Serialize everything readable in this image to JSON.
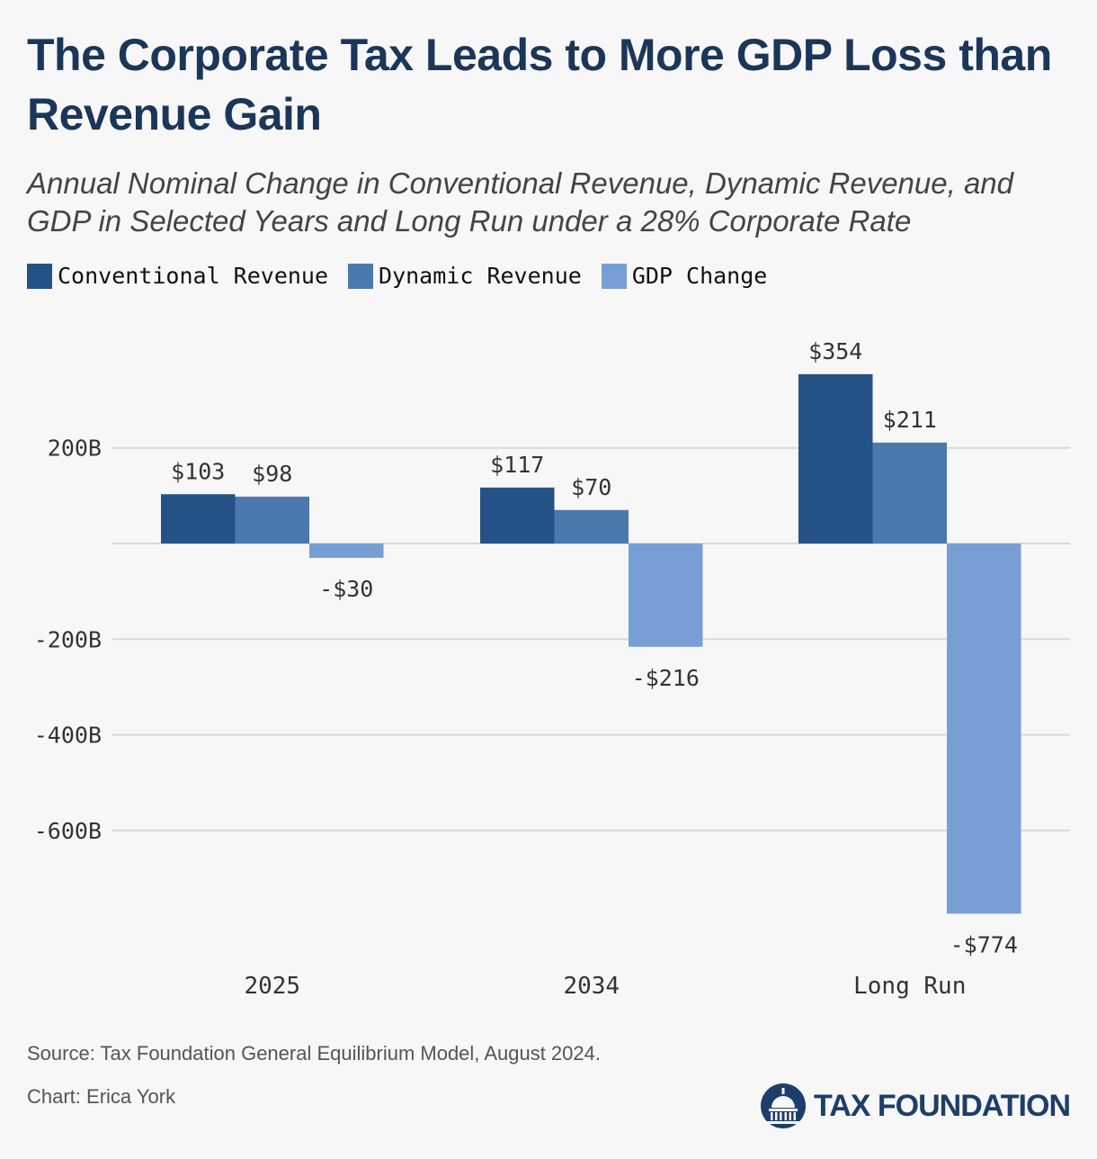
{
  "title": "The Corporate Tax Leads to More GDP Loss than Revenue Gain",
  "subtitle": "Annual Nominal Change in Conventional Revenue, Dynamic Revenue, and GDP in Selected Years and Long Run under a 28% Corporate Rate",
  "source": "Source: Tax Foundation General Equilibrium Model, August 2024.",
  "credit": "Chart: Erica York",
  "brand": "TAX FOUNDATION",
  "colors": {
    "background": "#f7f7f7",
    "conventional": "#245286",
    "dynamic": "#4b78ad",
    "gdp": "#789fd5",
    "grid": "#d9d9d9",
    "title": "#1b3658"
  },
  "chart_data": {
    "type": "bar",
    "categories": [
      "2025",
      "2034",
      "Long Run"
    ],
    "series": [
      {
        "name": "Conventional Revenue",
        "values": [
          103,
          117,
          354
        ],
        "labels": [
          "$103",
          "$117",
          "$354"
        ]
      },
      {
        "name": "Dynamic Revenue",
        "values": [
          98,
          70,
          211
        ],
        "labels": [
          "$98",
          "$70",
          "$211"
        ]
      },
      {
        "name": "GDP Change",
        "values": [
          -30,
          -216,
          -774
        ],
        "labels": [
          "-$30",
          "-$216",
          "-$774"
        ]
      }
    ],
    "yticks": [
      200,
      0,
      -200,
      -400,
      -600
    ],
    "ytick_labels": [
      "200B",
      "",
      "-200B",
      "-400B",
      "-600B"
    ],
    "ylim": [
      -780,
      360
    ],
    "legend": "top-left",
    "grid": true
  }
}
